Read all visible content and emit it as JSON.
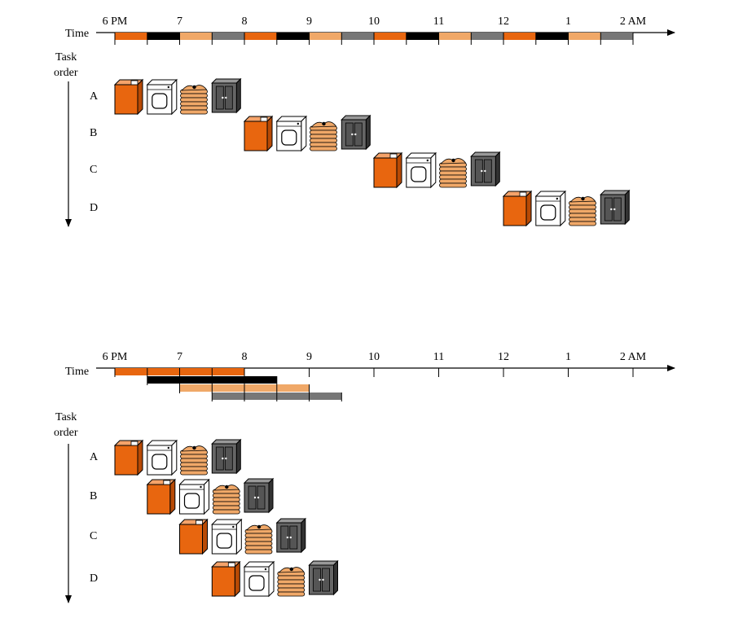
{
  "colors": {
    "wash": "#e8660f",
    "dry": "#ffffff",
    "fold": "#f0a868",
    "store": "#666666",
    "sequential_bar_cycle": [
      "#e8660f",
      "#000000",
      "#f0a868",
      "#777777"
    ],
    "pipelined_stage_colors": [
      "#e8660f",
      "#000000",
      "#f0a868",
      "#777777"
    ]
  },
  "stage_icons": [
    "washer-icon",
    "dryer-icon",
    "folded-clothes-icon",
    "closet-icon"
  ],
  "time_ticks": [
    "6 PM",
    "7",
    "8",
    "9",
    "10",
    "11",
    "12",
    "1",
    "2 AM"
  ],
  "sequential": {
    "axis_label": "Time",
    "order_label_line1": "Task",
    "order_label_line2": "order",
    "tasks": [
      {
        "label": "A",
        "start_hour": 0
      },
      {
        "label": "B",
        "start_hour": 2
      },
      {
        "label": "C",
        "start_hour": 4
      },
      {
        "label": "D",
        "start_hour": 6
      }
    ]
  },
  "pipelined": {
    "axis_label": "Time",
    "order_label_line1": "Task",
    "order_label_line2": "order",
    "tasks": [
      {
        "label": "A",
        "start_hour": 0
      },
      {
        "label": "B",
        "start_hour": 0.5
      },
      {
        "label": "C",
        "start_hour": 1
      },
      {
        "label": "D",
        "start_hour": 1.5
      }
    ]
  }
}
